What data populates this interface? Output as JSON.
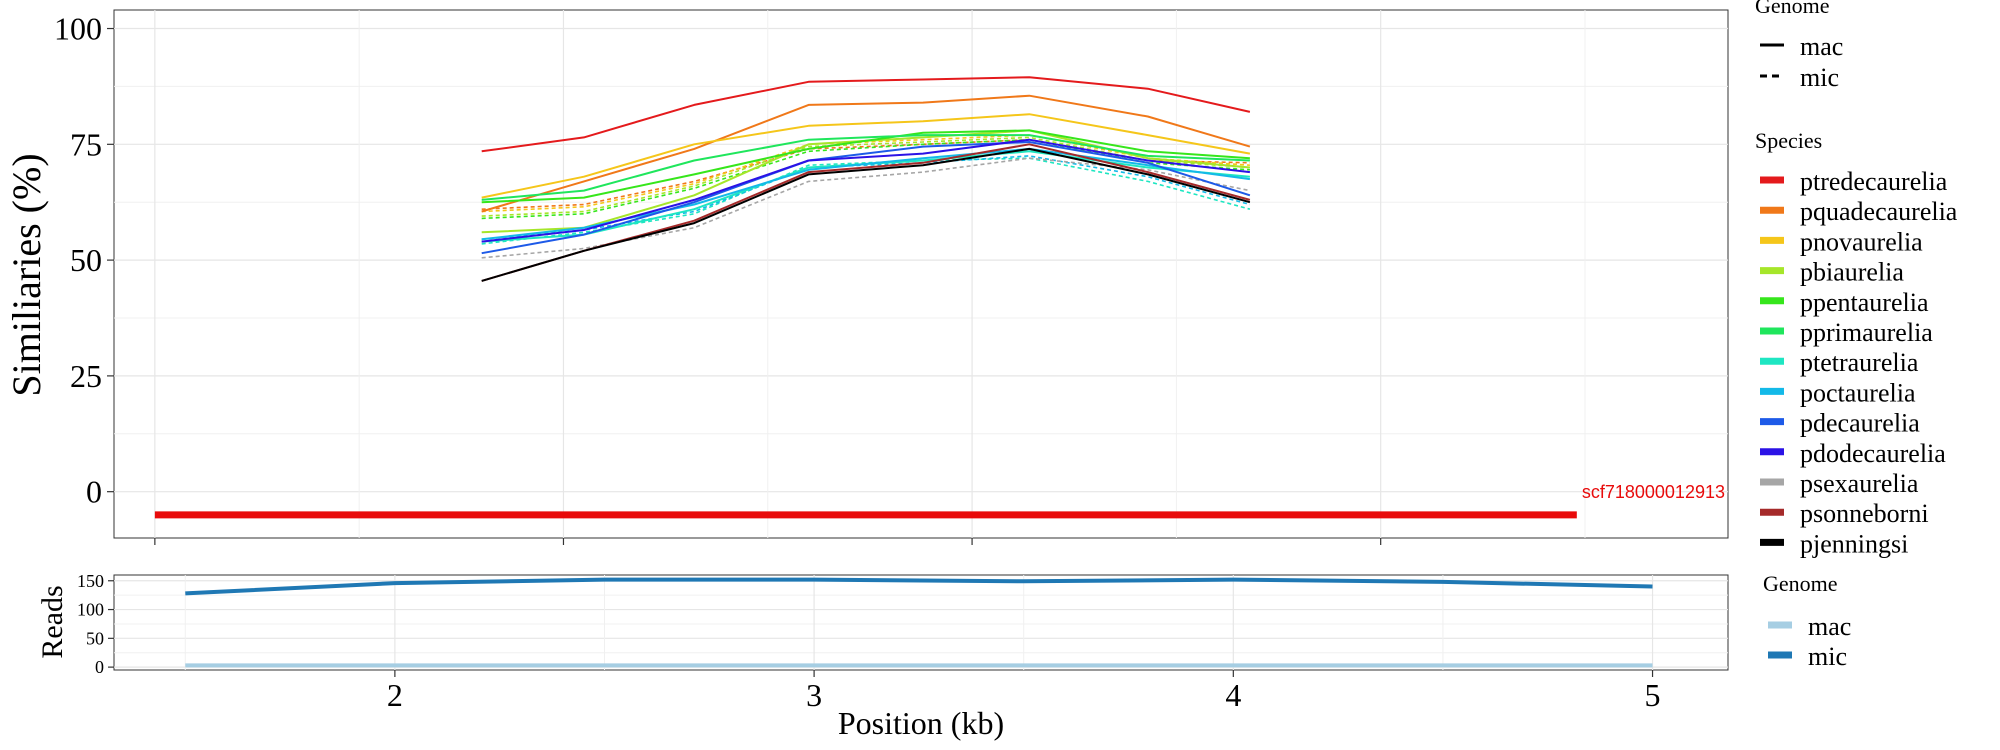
{
  "colors": {
    "ptredecaurelia": "#e41a1c",
    "pquadecaurelia": "#f07819",
    "pnovaurelia": "#f5c61a",
    "pbiaurelia": "#a6e62a",
    "ppentaurelia": "#36e61b",
    "pprimaurelia": "#1fe65c",
    "ptetraurelia": "#1ee6c2",
    "poctaurelia": "#13b9e8",
    "pdecaurelia": "#1d5ae8",
    "pdodecaurelia": "#2b12e6",
    "psexaurelia": "#a6a6a6",
    "psonneborni": "#a52a2a",
    "pjenningsi": "#000000",
    "contig": "#e80b0b",
    "reads_mac": "#a6cee3",
    "reads_mic": "#1f78b4"
  },
  "chart_data": [
    {
      "type": "line",
      "ylabel": "Similiaries (%)",
      "ylim": [
        -10,
        104
      ],
      "xlim": [
        1.4,
        5.35
      ],
      "y_ticks": [
        0,
        25,
        50,
        75,
        100
      ],
      "y_tick_labels": [
        "0",
        "25",
        "50",
        "75",
        "100"
      ],
      "grid": true,
      "legend_placement": "right",
      "x": [
        2.3,
        2.55,
        2.82,
        3.1,
        3.38,
        3.64,
        3.93,
        4.18
      ],
      "series": [
        {
          "name": "ptredecaurelia",
          "genome": "mac",
          "values": [
            73.5,
            76.5,
            83.5,
            88.5,
            89,
            89.5,
            87,
            82
          ]
        },
        {
          "name": "pquadecaurelia",
          "genome": "mac",
          "values": [
            60.5,
            67,
            74,
            83.5,
            84,
            85.5,
            81,
            74.5
          ]
        },
        {
          "name": "pnovaurelia",
          "genome": "mac",
          "values": [
            63.5,
            68,
            75,
            79,
            80,
            81.5,
            77,
            73
          ]
        },
        {
          "name": "pbiaurelia",
          "genome": "mac",
          "values": [
            56,
            57,
            64,
            75,
            76.5,
            78,
            72,
            70
          ]
        },
        {
          "name": "ppentaurelia",
          "genome": "mac",
          "values": [
            62.5,
            63.5,
            68.5,
            74,
            77.5,
            78,
            73.5,
            72
          ]
        },
        {
          "name": "pprimaurelia",
          "genome": "mac",
          "values": [
            63,
            65,
            71.5,
            76,
            77,
            77,
            72.5,
            71.5
          ]
        },
        {
          "name": "ptetraurelia",
          "genome": "mac",
          "values": [
            54,
            55.5,
            61,
            70,
            71.5,
            73.5,
            70,
            68
          ]
        },
        {
          "name": "poctaurelia",
          "genome": "mac",
          "values": [
            54.5,
            57,
            62,
            69.5,
            72,
            74,
            70.5,
            67.5
          ]
        },
        {
          "name": "pdecaurelia",
          "genome": "mac",
          "values": [
            51.5,
            55.5,
            62.5,
            71.5,
            74.5,
            75.5,
            71,
            64
          ]
        },
        {
          "name": "pdodecaurelia",
          "genome": "mac",
          "values": [
            54,
            56.5,
            63,
            71.5,
            73,
            76,
            71.5,
            69
          ]
        },
        {
          "name": "psonneborni",
          "genome": "mac",
          "values": [
            45.5,
            52,
            58.5,
            69,
            71,
            75,
            69,
            63
          ]
        },
        {
          "name": "pjenningsi",
          "genome": "mac",
          "values": [
            45.5,
            52,
            58,
            68.5,
            70.5,
            74,
            68.5,
            62.5
          ]
        },
        {
          "name": "pquadecaurelia",
          "genome": "mic",
          "values": [
            61,
            62,
            67,
            74,
            75,
            76,
            71.5,
            71
          ]
        },
        {
          "name": "pnovaurelia",
          "genome": "mic",
          "values": [
            60.5,
            61.5,
            66.5,
            75,
            76,
            77,
            72,
            70.5
          ]
        },
        {
          "name": "pbiaurelia",
          "genome": "mic",
          "values": [
            59.5,
            60.5,
            66,
            74.5,
            75.5,
            76.5,
            71.5,
            70
          ]
        },
        {
          "name": "ppentaurelia",
          "genome": "mic",
          "values": [
            59,
            60,
            65.5,
            73.5,
            75,
            76,
            71,
            69.5
          ]
        },
        {
          "name": "ptetraurelia",
          "genome": "mic",
          "values": [
            53.5,
            56,
            60,
            70.5,
            71.5,
            72,
            67,
            61
          ]
        },
        {
          "name": "poctaurelia",
          "genome": "mic",
          "values": [
            54.5,
            56.5,
            60.5,
            70,
            71,
            72.5,
            68,
            62
          ]
        },
        {
          "name": "psexaurelia",
          "genome": "mic",
          "values": [
            50.5,
            52.5,
            57,
            67,
            69,
            72,
            69.5,
            65
          ]
        }
      ],
      "annotations": [
        {
          "text": "scf718000012913",
          "x_start": 1.5,
          "x_end": 4.98,
          "y": -5
        }
      ]
    },
    {
      "type": "line",
      "xlabel": "Position (kb)",
      "ylabel": "Reads",
      "xlim": [
        1.33,
        5.18
      ],
      "ylim": [
        -5,
        160
      ],
      "x_ticks": [
        2,
        3,
        4,
        5
      ],
      "x_tick_labels": [
        "2",
        "3",
        "4",
        "5"
      ],
      "y_ticks": [
        0,
        50,
        100,
        150
      ],
      "y_tick_labels": [
        "0",
        "50",
        "100",
        "150"
      ],
      "grid": true,
      "legend_placement": "right",
      "x": [
        1.5,
        2,
        2.5,
        3,
        3.5,
        4,
        4.5,
        5
      ],
      "series": [
        {
          "name": "mac",
          "values": [
            3,
            3,
            3,
            3,
            3,
            3,
            3,
            3
          ]
        },
        {
          "name": "mic",
          "values": [
            128,
            146,
            152,
            152,
            149,
            152,
            148,
            140
          ]
        }
      ]
    }
  ],
  "legend": {
    "genome_title": "Genome",
    "genome_items": [
      {
        "label": "mac",
        "dash": false
      },
      {
        "label": "mic",
        "dash": true
      }
    ],
    "species_title": "Species",
    "species_items": [
      "ptredecaurelia",
      "pquadecaurelia",
      "pnovaurelia",
      "pbiaurelia",
      "ppentaurelia",
      "pprimaurelia",
      "ptetraurelia",
      "poctaurelia",
      "pdecaurelia",
      "pdodecaurelia",
      "psexaurelia",
      "psonneborni",
      "pjenningsi"
    ],
    "reads_genome_title": "Genome",
    "reads_genome_items": [
      "mac",
      "mic"
    ]
  }
}
